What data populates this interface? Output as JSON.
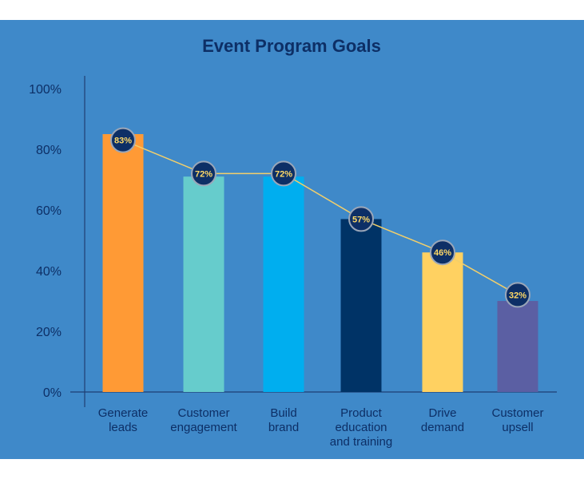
{
  "colors": {
    "panel_bg": "#3f89c9",
    "axis": "#1f3f73",
    "line": "#f2cf6b",
    "marker_fill": "#0d2f66",
    "marker_stroke": "#9aa6b8",
    "marker_text": "#ffd966",
    "title": "#0d2f66"
  },
  "chart_data": {
    "type": "bar",
    "title": "Event Program Goals",
    "xlabel": "",
    "ylabel": "",
    "ylim": [
      0,
      100
    ],
    "yticks": [
      0,
      20,
      40,
      60,
      80,
      100
    ],
    "ytick_labels": [
      "0%",
      "20%",
      "40%",
      "60%",
      "80%",
      "100%"
    ],
    "grid": false,
    "legend": "none",
    "categories": [
      [
        "Generate",
        "leads"
      ],
      [
        "Customer",
        "engagement"
      ],
      [
        "Build",
        "brand"
      ],
      [
        "Product",
        "education",
        "and training"
      ],
      [
        "Drive",
        "demand"
      ],
      [
        "Customer",
        "upsell"
      ]
    ],
    "series": [
      {
        "type": "bar",
        "values": [
          85,
          71,
          71,
          57,
          46,
          30
        ],
        "colors": [
          "#ff9a35",
          "#66cccc",
          "#00aeef",
          "#003366",
          "#ffd161",
          "#5b5fa3"
        ]
      },
      {
        "type": "line",
        "values": [
          83,
          72,
          72,
          57,
          46,
          32
        ],
        "labels": [
          "83%",
          "72%",
          "72%",
          "57%",
          "46%",
          "32%"
        ]
      }
    ]
  }
}
